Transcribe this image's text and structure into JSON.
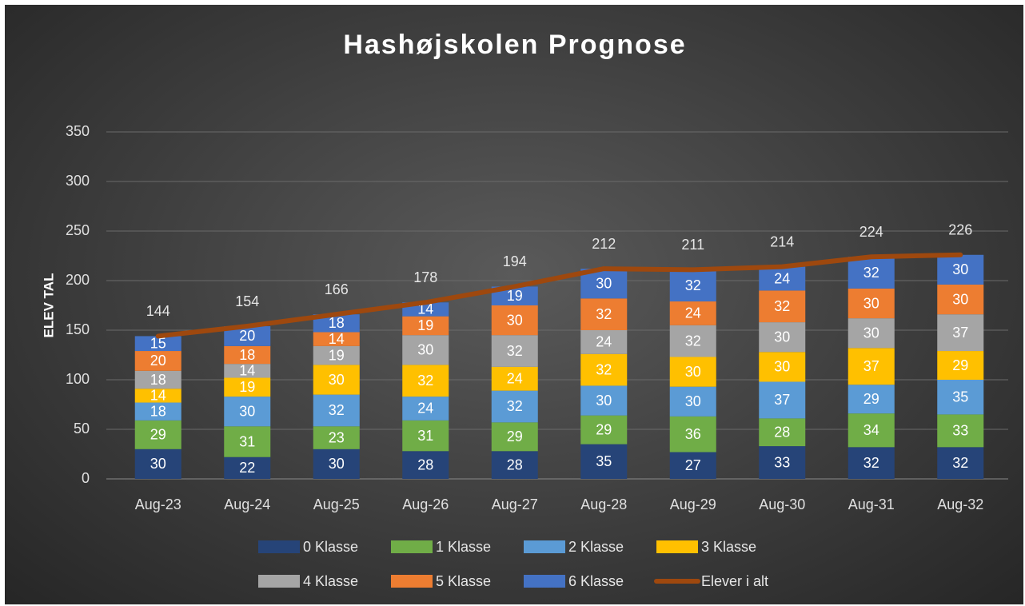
{
  "chart_data": {
    "type": "bar",
    "stacked": true,
    "title": "Hashøjskolen Prognose",
    "y_label": "ELEV TAL",
    "categories": [
      "Aug-23",
      "Aug-24",
      "Aug-25",
      "Aug-26",
      "Aug-27",
      "Aug-28",
      "Aug-29",
      "Aug-30",
      "Aug-31",
      "Aug-32"
    ],
    "series": [
      {
        "name": "0 Klasse",
        "color": "#264478",
        "values": [
          30,
          22,
          30,
          28,
          28,
          35,
          27,
          33,
          32,
          32
        ]
      },
      {
        "name": "1 Klasse",
        "color": "#70ad47",
        "values": [
          29,
          31,
          23,
          31,
          29,
          29,
          36,
          28,
          34,
          33
        ]
      },
      {
        "name": "2 Klasse",
        "color": "#5b9bd5",
        "values": [
          18,
          30,
          32,
          24,
          32,
          30,
          30,
          37,
          29,
          35
        ]
      },
      {
        "name": "3 Klasse",
        "color": "#ffc000",
        "values": [
          14,
          19,
          30,
          32,
          24,
          32,
          30,
          30,
          37,
          29
        ]
      },
      {
        "name": "4 Klasse",
        "color": "#a5a5a5",
        "values": [
          18,
          14,
          19,
          30,
          32,
          24,
          32,
          30,
          30,
          37
        ]
      },
      {
        "name": "5 Klasse",
        "color": "#ed7d31",
        "values": [
          20,
          18,
          14,
          19,
          30,
          32,
          24,
          32,
          30,
          30
        ]
      },
      {
        "name": "6 Klasse",
        "color": "#4472c4",
        "values": [
          15,
          20,
          18,
          14,
          19,
          30,
          32,
          24,
          32,
          30
        ]
      },
      {
        "name": "Elever i alt",
        "type": "line",
        "color": "#9e480e",
        "values": [
          144,
          154,
          166,
          178,
          194,
          212,
          211,
          214,
          224,
          226
        ]
      }
    ],
    "ylim": [
      0,
      350
    ],
    "yticks": [
      0,
      50,
      100,
      150,
      200,
      250,
      300,
      350
    ],
    "grid": true,
    "legend": "bottom"
  }
}
